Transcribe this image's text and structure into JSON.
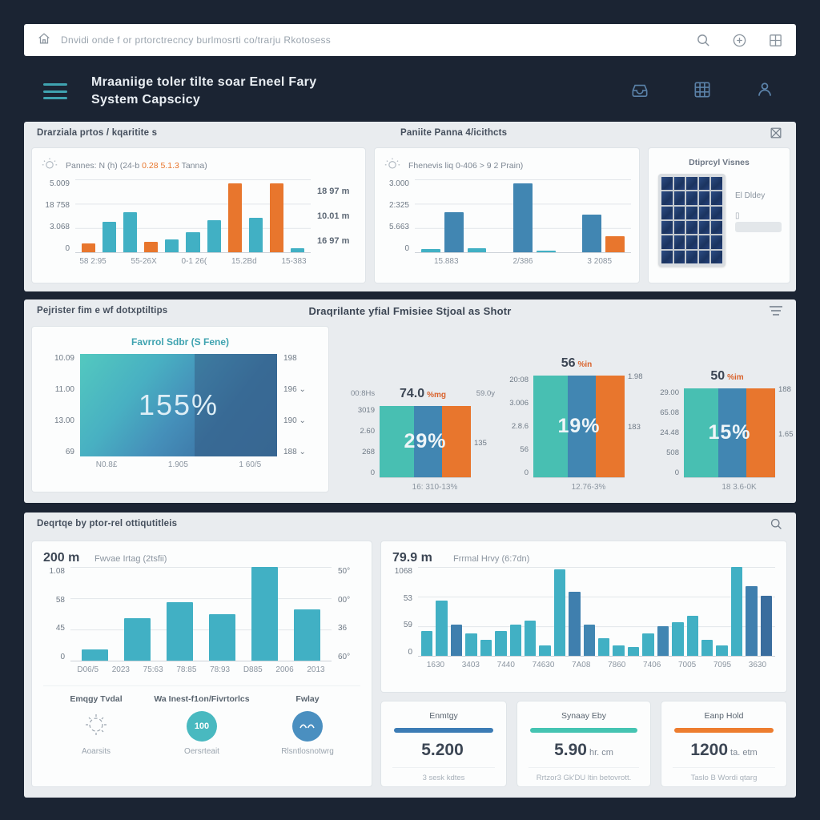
{
  "palette": {
    "teal": "#41b0c4",
    "blue": "#4186b2",
    "dark": "#3a6d9e",
    "mid": "#3f7fae",
    "orange": "#e8762d",
    "stacked_teal": "#48bfb2"
  },
  "topbar": {
    "breadcrumb": "Dnvidi onde f or prtorctrecncy burlmosrti co/trarju Rkotosess"
  },
  "header": {
    "title_line1": "Mraaniige toler tilte soar Eneel Fary",
    "title_line2": "System Capscicy"
  },
  "row1": {
    "left_title": "Drarziala prtos / kqaritite s",
    "right_title": "Paniite Panna 4/icithcts",
    "card_a": {
      "sub_prefix": "Pannes: N (h) (24-b ",
      "sub_accent": "0.28 5.1.3",
      "sub_suffix": " Tanna)"
    },
    "card_b": {
      "subtitle": "Fhenevis liq 0-406 > 9 2 Prain)"
    },
    "card_c": {
      "title": "Dtiprcyl Visnes",
      "label": "El Dldey"
    }
  },
  "row2": {
    "left_title": "Pejrister fim e wf dotxptiltips",
    "center_title": "Draqrilante yfial Fmisiee Stjoal as Shotr"
  },
  "row3": {
    "header_title": "Deqrtqe by ptor-rel ottiqutitleis",
    "stats": [
      {
        "label": "Emqgy Tvdal",
        "caption": "Aoarsits"
      },
      {
        "label": "Wa Inest-f1on/Fivrtorlcs",
        "badge": "100",
        "caption": "Oersrteait"
      },
      {
        "label": "Fwlay",
        "caption": "Rlsntlosnotwrg"
      }
    ]
  },
  "bottom": {
    "cards": [
      {
        "title": "Enmtgy",
        "bar_color": "#3c7cb5",
        "value": "5.200",
        "unit": "",
        "footer": "3 sesk kdtes"
      },
      {
        "title": "Synaay Eby",
        "bar_color": "#45c4b2",
        "value": "5.90",
        "unit": "hr. cm",
        "footer": "Rrtzor3 Gk'DU ltin betovrott."
      },
      {
        "title": "Eanp Hold",
        "bar_color": "#ed7d2f",
        "value": "1200",
        "unit": "ta. etm",
        "footer": "Taslo B Wordi qtarg"
      }
    ]
  },
  "chart_data": {
    "row1a": {
      "type": "bar",
      "title": "Pannes: N (h) (24-b 0.28 5.1.3 Tanna)",
      "y_ticks": [
        "5.009",
        "18 758",
        "3.068",
        "0"
      ],
      "x_ticks": [
        "58 2:95",
        "55-26X",
        "0-1 26(",
        "15.2Bd",
        "15-383"
      ],
      "right_labels": [
        "18 97 m",
        "10.01 m",
        "16 97 m"
      ],
      "values": [
        12,
        42,
        55,
        14,
        18,
        28,
        44,
        95,
        47,
        95,
        6
      ],
      "colors": [
        "orange",
        "teal",
        "teal",
        "orange",
        "teal",
        "teal",
        "teal",
        "orange",
        "teal",
        "orange",
        "teal"
      ],
      "ylim": [
        0,
        100
      ]
    },
    "row1b": {
      "type": "bar",
      "title": "Fhenevis liq 0-406 > 9 2 Prain)",
      "y_ticks": [
        "3.000",
        "2:325",
        "5.663",
        "0"
      ],
      "x_ticks": [
        "15.883",
        "2/386",
        "3 2085"
      ],
      "values": [
        4,
        55,
        5,
        null,
        95,
        2,
        null,
        52,
        22
      ],
      "colors": [
        "teal",
        "blue",
        "teal",
        "teal",
        "blue",
        "teal",
        "teal",
        "blue",
        "orange"
      ],
      "ylim": [
        0,
        100
      ]
    },
    "area": {
      "type": "area",
      "title": "Favrrol Sdbr (S Fene)",
      "overlay": "155%",
      "y_left": [
        "10.09",
        "11.00",
        "13.00",
        "69"
      ],
      "y_right": [
        "198",
        "196 ⌄",
        "190 ⌄",
        "188 ⌄"
      ],
      "x_ticks": [
        "N0.8£",
        "1.905",
        "1 60/5"
      ]
    },
    "trio": [
      {
        "type": "stacked",
        "header_left": "00:8Hs",
        "value": "74.0",
        "unit": "%mg",
        "header_right": "59.0y",
        "y_ticks": [
          "3019",
          "2.60",
          "268",
          "0"
        ],
        "right_mid": "135",
        "overlay": "29%",
        "x_label": "16: 310-13%",
        "stripes": [
          {
            "color": "stacked_teal",
            "w": 38
          },
          {
            "color": "blue",
            "w": 30
          },
          {
            "color": "orange",
            "w": 32
          }
        ]
      },
      {
        "type": "stacked",
        "value": "56",
        "unit": "%in",
        "right_top": "1.98",
        "y_ticks": [
          "20:08",
          "3.006",
          "2.8.6",
          "56",
          "0"
        ],
        "right_mid": "183",
        "overlay": "19%",
        "x_label": "12.76-3%",
        "stripes": [
          {
            "color": "stacked_teal",
            "w": 38
          },
          {
            "color": "blue",
            "w": 30
          },
          {
            "color": "orange",
            "w": 32
          }
        ]
      },
      {
        "type": "stacked",
        "value": "50",
        "unit": "%im",
        "right_top": "188",
        "y_ticks": [
          "29.00",
          "65.08",
          "24.48",
          "508",
          "0"
        ],
        "right_mid": "1.65",
        "overlay": "15%",
        "x_label": "18 3.6-0K",
        "stripes": [
          {
            "color": "stacked_teal",
            "w": 38
          },
          {
            "color": "blue",
            "w": 30
          },
          {
            "color": "orange",
            "w": 32
          }
        ]
      }
    ],
    "row3a": {
      "type": "bar",
      "big": "200 m",
      "subtitle": "Fwvae Irtag (2tsfii)",
      "y_ticks": [
        "1.08",
        "58",
        "45",
        "0"
      ],
      "right_ticks": [
        "50°",
        "00°",
        "36",
        "60°"
      ],
      "x_ticks": [
        "D06/5",
        "2023",
        "75:63",
        "78:85",
        "78:93",
        "D885",
        "2006",
        "2013"
      ],
      "values": [
        12,
        45,
        62,
        50,
        100,
        55
      ],
      "colors": [
        "teal",
        "teal",
        "teal",
        "teal",
        "teal",
        "teal"
      ],
      "ylim": [
        0,
        100
      ]
    },
    "row3b": {
      "type": "bar",
      "big": "79.9 m",
      "subtitle": "Frrmal Hrvy (6:7dn)",
      "y_ticks": [
        "1068",
        "53",
        "59",
        "0"
      ],
      "x_ticks": [
        "1630",
        "3403",
        "7440",
        "74630",
        "7A08",
        "7860",
        "7406",
        "7005",
        "7095",
        "3630"
      ],
      "values": [
        28,
        62,
        35,
        25,
        18,
        28,
        35,
        40,
        12,
        97,
        72,
        35,
        20,
        12,
        10,
        25,
        33,
        38,
        45,
        18,
        12,
        100,
        78,
        68
      ],
      "colors": [
        "teal",
        "teal",
        "mid",
        "teal",
        "teal",
        "teal",
        "teal",
        "teal",
        "teal",
        "teal",
        "mid",
        "blue",
        "teal",
        "teal",
        "teal",
        "teal",
        "blue",
        "teal",
        "teal",
        "teal",
        "teal",
        "teal",
        "mid",
        "dark"
      ],
      "ylim": [
        0,
        100
      ]
    }
  }
}
